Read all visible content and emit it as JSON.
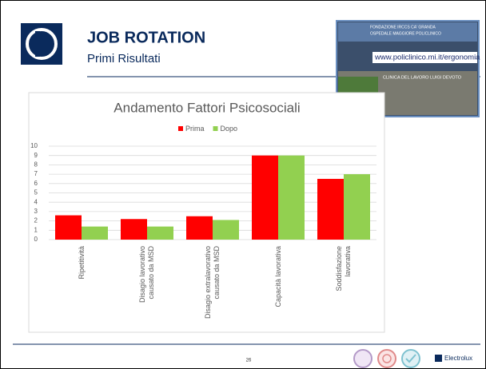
{
  "header": {
    "title": "JOB ROTATION",
    "subtitle": "Primi Risultati"
  },
  "inset": {
    "institution": "FONDAZIONE IRCCS CA' GRANDA",
    "hospital": "OSPEDALE MAGGIORE POLICLINICO",
    "url": "www.policlinico.mi.it/ergonomia",
    "building": "CLINICA DEL LAVORO LUIGI DEVOTO"
  },
  "chart_data": {
    "type": "bar",
    "title": "Andamento Fattori Psicosociali",
    "categories": [
      "Ripetitività",
      "Disagio lavorativo\ncausato da MSD",
      "Disagio extralavorativo\ncausato da MSD",
      "Capacità lavorativa",
      "Soddisfazione\nlavorativa"
    ],
    "series": [
      {
        "name": "Prima",
        "color": "#ff0000",
        "values": [
          2.6,
          2.2,
          2.5,
          9,
          6.5
        ]
      },
      {
        "name": "Dopo",
        "color": "#92d050",
        "values": [
          1.4,
          1.4,
          2.1,
          9,
          7
        ]
      }
    ],
    "ylim": [
      0,
      10
    ],
    "yticks": [
      0,
      1,
      2,
      3,
      4,
      5,
      6,
      7,
      8,
      9,
      10
    ],
    "grid": true,
    "legend": "top"
  },
  "footer": {
    "page": "26",
    "brand": "Electrolux"
  }
}
